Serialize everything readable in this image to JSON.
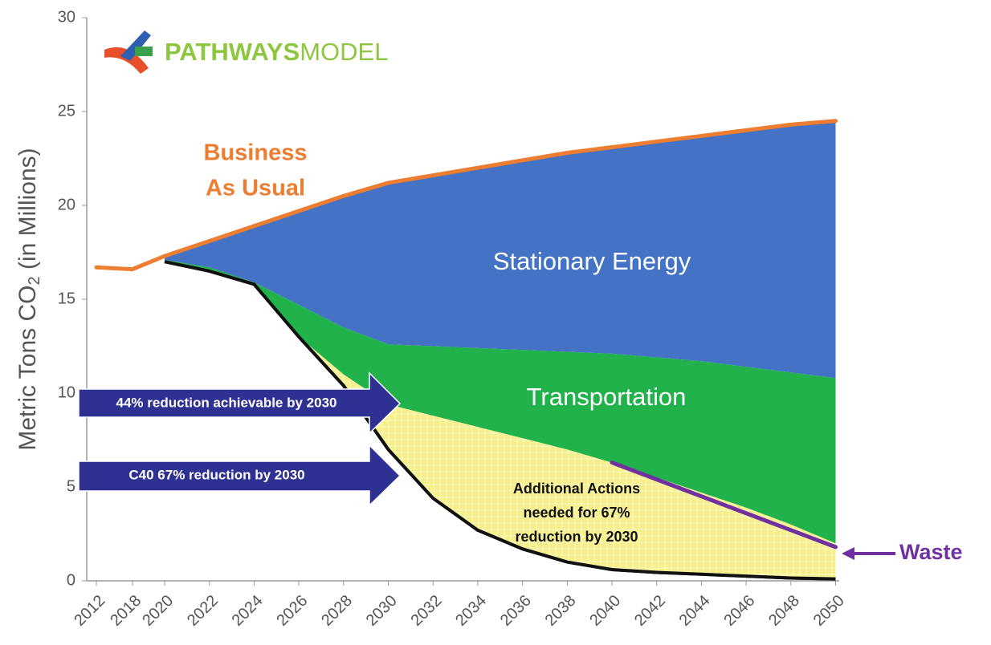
{
  "chart_data": {
    "type": "stacked-area",
    "logo": {
      "bold": "PATHWAYS",
      "light": "MODEL"
    },
    "ylabel": {
      "text": "Metric Tons CO",
      "subscript": "2",
      "suffix": " (in Millions)"
    },
    "categories": [
      "2012",
      "2018",
      "2020",
      "2022",
      "2024",
      "2026",
      "2028",
      "2030",
      "2032",
      "2034",
      "2036",
      "2038",
      "2040",
      "2042",
      "2044",
      "2046",
      "2048",
      "2050"
    ],
    "ylim": [
      0,
      30
    ],
    "yticks": [
      0,
      5,
      10,
      15,
      20,
      25,
      30
    ],
    "series": [
      {
        "color": "#111111",
        "fill": "none",
        "values": [
          null,
          null,
          17.0,
          16.5,
          15.8,
          13.0,
          10.4,
          7.0,
          4.4,
          2.7,
          1.7,
          1.0,
          0.6,
          0.45,
          0.35,
          0.25,
          0.15,
          0.1
        ]
      },
      {
        "color": "#f5f08a",
        "values": [
          null,
          null,
          0,
          0,
          0,
          0,
          0.6,
          2.4,
          4.4,
          5.5,
          5.9,
          6.0,
          5.7,
          5.05,
          4.35,
          3.65,
          2.85,
          1.9
        ]
      },
      {
        "name": "Transportation",
        "color": "#21b24b",
        "values": [
          null,
          null,
          0.1,
          0.2,
          0.1,
          1.7,
          2.5,
          3.2,
          3.7,
          4.2,
          4.7,
          5.2,
          5.8,
          6.4,
          7.0,
          7.5,
          8.1,
          8.8
        ]
      },
      {
        "name": "Stationary Energy",
        "color": "#4472c4",
        "values": [
          null,
          null,
          0.2,
          1.4,
          3.0,
          5.0,
          7.0,
          8.6,
          9.1,
          9.6,
          10.1,
          10.6,
          11.0,
          11.5,
          12.0,
          12.6,
          13.2,
          13.7
        ]
      }
    ],
    "lines": [
      {
        "label": [
          "Business",
          "As Usual"
        ],
        "color": "#ed7d31",
        "values": [
          16.7,
          16.6,
          17.3,
          18.1,
          18.9,
          19.7,
          20.5,
          21.2,
          21.6,
          22.0,
          22.4,
          22.8,
          23.1,
          23.4,
          23.7,
          24.0,
          24.3,
          24.5
        ]
      },
      {
        "name": "Waste",
        "color": "#7030a0",
        "values": [
          null,
          null,
          null,
          null,
          null,
          null,
          null,
          null,
          null,
          null,
          null,
          null,
          6.3,
          5.4,
          4.5,
          3.6,
          2.7,
          1.8
        ]
      }
    ],
    "annotations": {
      "additional": [
        "Additional Actions",
        "needed for 67%",
        "reduction by 2030"
      ],
      "arrows": [
        "44% reduction achievable by 2030",
        "C40 67% reduction by 2030"
      ]
    }
  }
}
